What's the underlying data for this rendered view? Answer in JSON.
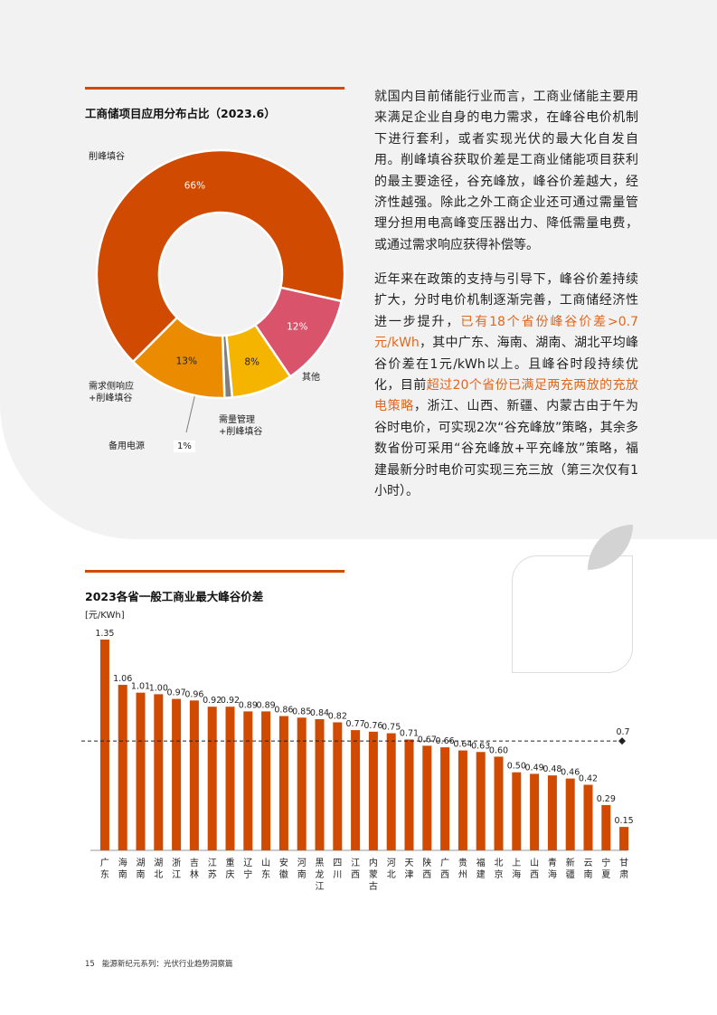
{
  "donut": {
    "title": "工商储项目应用分布占比（2023.6）",
    "segments": [
      {
        "label": "削峰填谷",
        "value": 66,
        "value_text": "66%",
        "color": "#d04a02"
      },
      {
        "label": "其他",
        "value": 12,
        "value_text": "12%",
        "color": "#d9536b"
      },
      {
        "label": "需量管理+削峰填谷",
        "value": 8,
        "value_text": "8%",
        "color": "#f5b400"
      },
      {
        "label": "备用电源",
        "value": 1,
        "value_text": "1%",
        "color": "#7f7f7f"
      },
      {
        "label": "需求侧响应+削峰填谷",
        "value": 13,
        "value_text": "13%",
        "color": "#eb8c00"
      }
    ],
    "labels": {
      "peak": "削峰填谷",
      "other": "其他",
      "demand_mgmt_1": "需量管理",
      "demand_mgmt_2": "+削峰填谷",
      "backup": "备用电源",
      "backup_pct": "1%",
      "response_1": "需求侧响应",
      "response_2": "+削峰填谷"
    }
  },
  "text": {
    "para1": "就国内目前储能行业而言，工商业储能主要用来满足企业自身的电力需求，在峰谷电价机制下进行套利，或者实现光伏的最大化自发自用。削峰填谷获取价差是工商业储能项目获利的最主要途径，谷充峰放，峰谷价差越大，经济性越强。除此之外工商企业还可通过需量管理分担用电高峰变压器出力、降低需量电费，或通过需求响应获得补偿等。",
    "p2_a": "近年来在政策的支持与引导下，峰谷价差持续扩大，分时电价机制逐渐完善，工商储经济性进一步提升，",
    "p2_b": "已有18个省份峰谷价差>0.7元/kWh",
    "p2_c": "，其中广东、海南、湖南、湖北平均峰谷价差在1元/kWh以上。且峰谷时段持续优化，目前",
    "p2_d": "超过20个省份已满足两充两放的充放电策略",
    "p2_e": "，浙江、山西、新疆、内蒙古由于午为谷时电价，可实现2次“谷充峰放”策略，其余多数省份可采用“谷充峰放+平充峰放”策略，福建最新分时电价可实现三充三放（第三次仅有1小时）。"
  },
  "chart_data": {
    "type": "bar",
    "title": "2023各省一般工商业最大峰谷价差",
    "ylabel": "[元/KWh]",
    "categories": [
      "广东",
      "海南",
      "湖南",
      "湖北",
      "浙江",
      "吉林",
      "江苏",
      "重庆",
      "辽宁",
      "山东",
      "安徽",
      "河南",
      "黑龙江",
      "四川",
      "江西",
      "内蒙古",
      "河北",
      "天津",
      "陕西",
      "广西",
      "贵州",
      "福建",
      "北京",
      "上海",
      "山西",
      "青海",
      "新疆",
      "云南",
      "宁夏",
      "甘肃"
    ],
    "values": [
      1.35,
      1.06,
      1.01,
      1.0,
      0.97,
      0.96,
      0.92,
      0.92,
      0.89,
      0.89,
      0.86,
      0.85,
      0.84,
      0.82,
      0.77,
      0.76,
      0.75,
      0.71,
      0.67,
      0.66,
      0.64,
      0.63,
      0.6,
      0.5,
      0.49,
      0.48,
      0.46,
      0.42,
      0.29,
      0.15
    ],
    "value_labels": [
      "1.35",
      "1.06",
      "1.01",
      "1.00",
      "0.97",
      "0.96",
      "0.92",
      "0.92",
      "0.89",
      "0.89",
      "0.86",
      "0.85",
      "0.84",
      "0.82",
      "0.77",
      "0.76",
      "0.75",
      "0.71",
      "0.67",
      "0.66",
      "0.64",
      "0.63",
      "0.60",
      "0.50",
      "0.49",
      "0.48",
      "0.46",
      "0.42",
      "0.29",
      "0.15"
    ],
    "reference_line": {
      "value": 0.7,
      "label": "0.7"
    },
    "ylim": [
      0,
      1.4
    ],
    "bar_color": "#d04a02",
    "grid": false
  },
  "footer": {
    "page": "15",
    "text": "能源新纪元系列：光伏行业趋势洞察篇"
  }
}
